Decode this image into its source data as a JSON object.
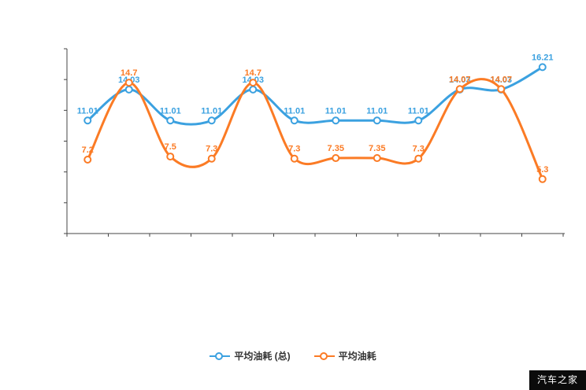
{
  "chart_data": {
    "type": "line",
    "smooth": true,
    "title": "",
    "xlabel": "",
    "ylabel": "",
    "categories": [
      "",
      "",
      "",
      "",
      "",
      "",
      "",
      "",
      "",
      "",
      "",
      ""
    ],
    "series": [
      {
        "name": "平均油耗 (总)",
        "color": "#3ba1e0",
        "values": [
          11.01,
          14.03,
          11.01,
          11.01,
          14.03,
          11.01,
          11.01,
          11.01,
          11.01,
          14.03,
          14.03,
          16.21
        ]
      },
      {
        "name": "平均油耗",
        "color": "#fb7b25",
        "values": [
          7.2,
          14.7,
          7.5,
          7.3,
          14.7,
          7.3,
          7.35,
          7.35,
          7.3,
          14.07,
          14.07,
          5.3
        ]
      }
    ],
    "ylim": [
      0,
      18
    ],
    "grid": false,
    "legend_position": "bottom",
    "axis_color": "#444444",
    "label_font_size": 11,
    "marker": "hollow-circle"
  },
  "legend": {
    "marker_shape": "line-with-circle"
  },
  "watermark": "汽车之家"
}
